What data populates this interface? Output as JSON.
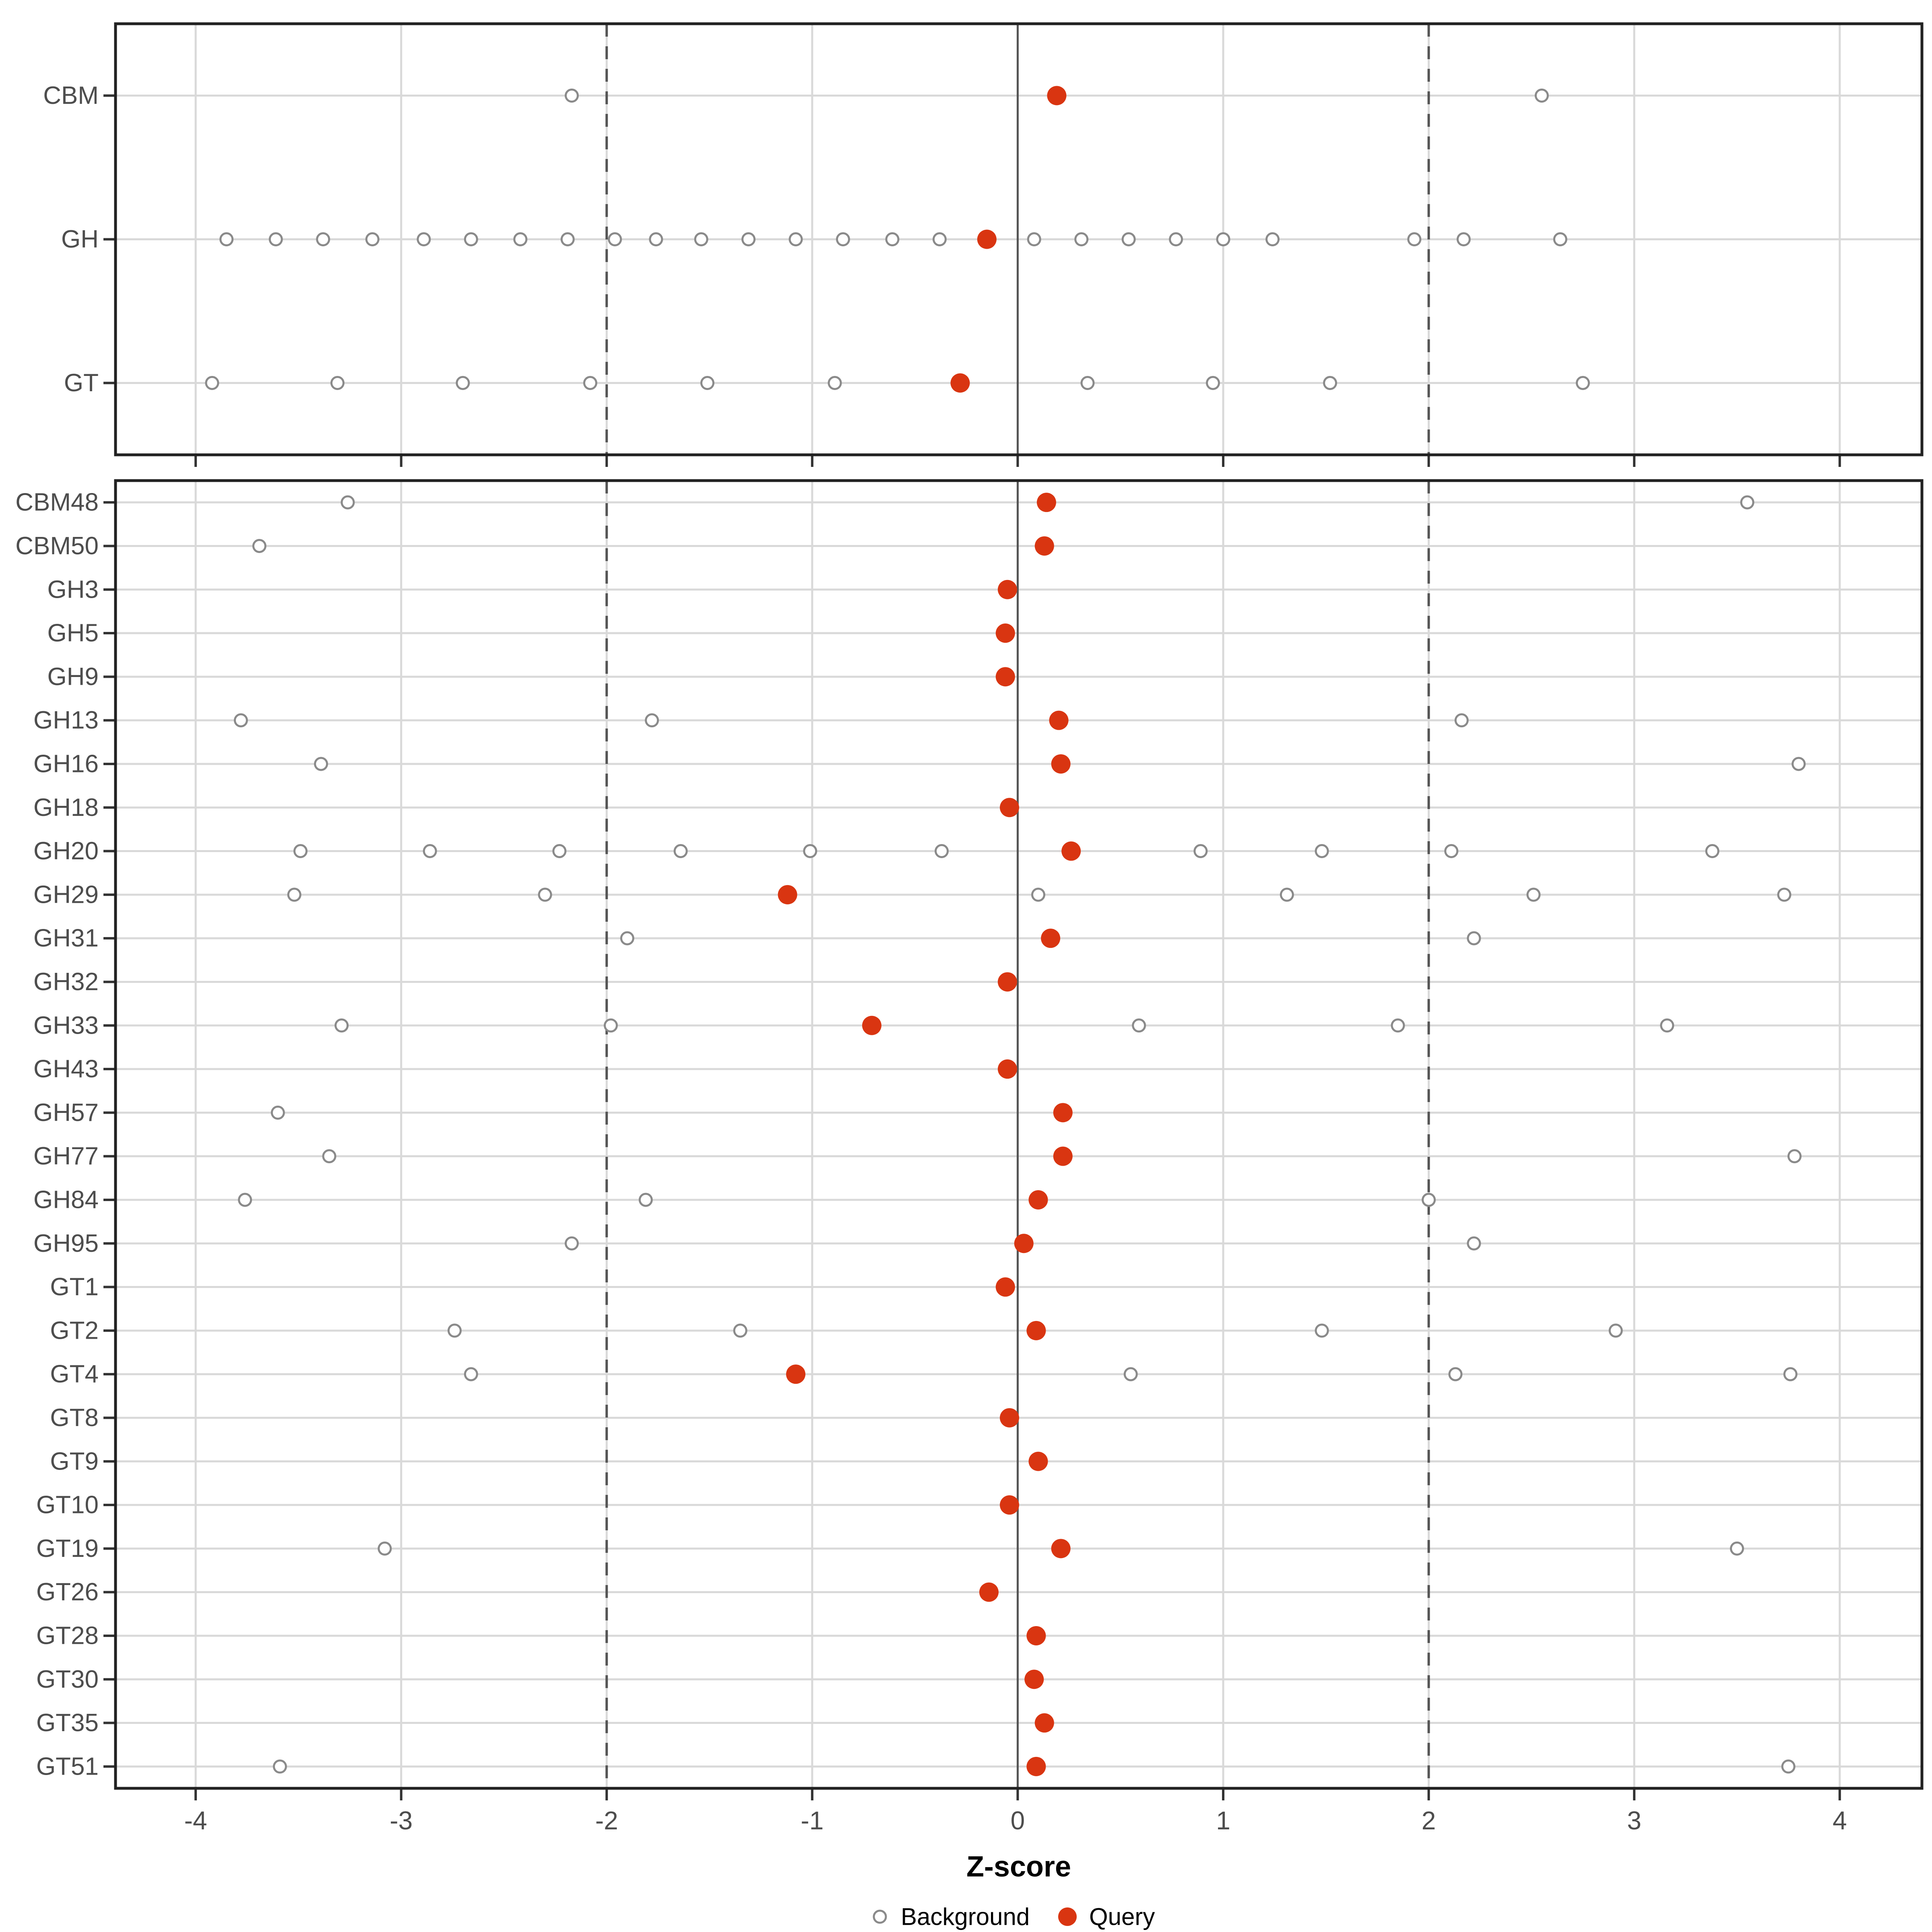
{
  "chart_data": {
    "type": "scatter",
    "title": "",
    "xlabel": "Z-score",
    "ylabel": "",
    "x_ticks": [
      -4,
      -3,
      -2,
      -1,
      0,
      1,
      2,
      3,
      4
    ],
    "xlim": [
      -4.39,
      4.4
    ],
    "grid": "major-on",
    "reference_lines": {
      "solid": [
        0
      ],
      "dashed": [
        -2,
        2
      ]
    },
    "legend_position": "bottom",
    "legend": [
      {
        "label": "Background",
        "marker": "open-circle"
      },
      {
        "label": "Query",
        "marker": "filled-circle"
      }
    ],
    "colors": {
      "query": "#D93511",
      "background_stroke": "#8A8A8A",
      "grid": "#D9D9D9",
      "refline": "#555555",
      "axis_text": "#4D4D4D",
      "title_text": "#000000",
      "panel_border": "#222222",
      "tick": "#333333"
    },
    "panels": [
      {
        "name": "category-summary",
        "rows": [
          {
            "label": "CBM",
            "query": 0.19,
            "background": [
              -2.17,
              2.55
            ]
          },
          {
            "label": "GH",
            "query": -0.15,
            "background": [
              -3.85,
              -3.61,
              -3.38,
              -3.14,
              -2.89,
              -2.66,
              -2.42,
              -2.19,
              -1.96,
              -1.76,
              -1.54,
              -1.31,
              -1.08,
              -0.85,
              -0.61,
              -0.38,
              0.08,
              0.31,
              0.54,
              0.77,
              1.0,
              1.24,
              1.93,
              2.17,
              2.64
            ]
          },
          {
            "label": "GT",
            "query": -0.28,
            "background": [
              -3.92,
              -3.31,
              -2.7,
              -2.08,
              -1.51,
              -0.89,
              0.34,
              0.95,
              1.52,
              2.75
            ]
          }
        ]
      },
      {
        "name": "family-detail",
        "rows": [
          {
            "label": "CBM48",
            "query": 0.14,
            "background": [
              -3.26,
              3.55
            ]
          },
          {
            "label": "CBM50",
            "query": 0.13,
            "background": [
              -3.69
            ]
          },
          {
            "label": "GH3",
            "query": -0.05,
            "background": []
          },
          {
            "label": "GH5",
            "query": -0.06,
            "background": []
          },
          {
            "label": "GH9",
            "query": -0.06,
            "background": []
          },
          {
            "label": "GH13",
            "query": 0.2,
            "background": [
              -3.78,
              -1.78,
              2.16
            ]
          },
          {
            "label": "GH16",
            "query": 0.21,
            "background": [
              -3.39,
              3.8
            ]
          },
          {
            "label": "GH18",
            "query": -0.04,
            "background": []
          },
          {
            "label": "GH20",
            "query": 0.26,
            "background": [
              -3.49,
              -2.86,
              -2.23,
              -1.64,
              -1.01,
              -0.37,
              0.89,
              1.48,
              2.11,
              3.38
            ]
          },
          {
            "label": "GH29",
            "query": -1.12,
            "background": [
              -3.52,
              -2.3,
              0.1,
              1.31,
              2.51,
              3.73
            ]
          },
          {
            "label": "GH31",
            "query": 0.16,
            "background": [
              -1.9,
              2.22
            ]
          },
          {
            "label": "GH32",
            "query": -0.05,
            "background": []
          },
          {
            "label": "GH33",
            "query": -0.71,
            "background": [
              -3.29,
              -1.98,
              0.59,
              1.85,
              3.16
            ]
          },
          {
            "label": "GH43",
            "query": -0.05,
            "background": []
          },
          {
            "label": "GH57",
            "query": 0.22,
            "background": [
              -3.6
            ]
          },
          {
            "label": "GH77",
            "query": 0.22,
            "background": [
              -3.35,
              3.78
            ]
          },
          {
            "label": "GH84",
            "query": 0.1,
            "background": [
              -3.76,
              -1.81,
              2.0
            ]
          },
          {
            "label": "GH95",
            "query": 0.03,
            "background": [
              -2.17,
              2.22
            ]
          },
          {
            "label": "GT1",
            "query": -0.06,
            "background": []
          },
          {
            "label": "GT2",
            "query": 0.09,
            "background": [
              -2.74,
              -1.35,
              1.48,
              2.91
            ]
          },
          {
            "label": "GT4",
            "query": -1.08,
            "background": [
              -2.66,
              0.55,
              2.13,
              3.76
            ]
          },
          {
            "label": "GT8",
            "query": -0.04,
            "background": []
          },
          {
            "label": "GT9",
            "query": 0.1,
            "background": []
          },
          {
            "label": "GT10",
            "query": -0.04,
            "background": []
          },
          {
            "label": "GT19",
            "query": 0.21,
            "background": [
              -3.08,
              3.5
            ]
          },
          {
            "label": "GT26",
            "query": -0.14,
            "background": []
          },
          {
            "label": "GT28",
            "query": 0.09,
            "background": []
          },
          {
            "label": "GT30",
            "query": 0.08,
            "background": []
          },
          {
            "label": "GT35",
            "query": 0.13,
            "background": []
          },
          {
            "label": "GT51",
            "query": 0.09,
            "background": [
              -3.59,
              3.75
            ]
          }
        ]
      }
    ]
  }
}
